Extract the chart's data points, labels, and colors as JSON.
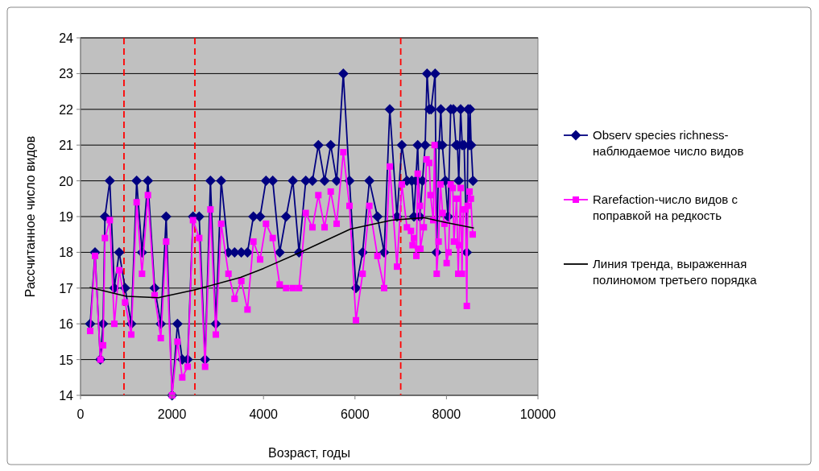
{
  "chart_data": {
    "type": "line",
    "xlabel": "Возраст, годы",
    "ylabel": "Рассчитанное число видов",
    "xlim": [
      0,
      10000
    ],
    "xticks": [
      0,
      2000,
      4000,
      6000,
      8000,
      10000
    ],
    "ylim": [
      14,
      24
    ],
    "yticks": [
      14,
      15,
      16,
      17,
      18,
      19,
      20,
      21,
      22,
      23,
      24
    ],
    "grid": "y",
    "legend": "right",
    "ref_lines": [
      {
        "axis": "x",
        "value": 950,
        "color": "#ff0000",
        "line_style": "dashed"
      },
      {
        "axis": "x",
        "value": 2500,
        "color": "#ff0000",
        "line_style": "dashed"
      },
      {
        "axis": "x",
        "value": 7000,
        "color": "#ff0000",
        "line_style": "dashed"
      }
    ],
    "series": [
      {
        "name": "Observ species richness-наблюдаемое число видов",
        "color": "#000080",
        "marker": "diamond",
        "x": [
          211,
          317,
          434,
          493,
          534,
          640,
          739,
          845,
          974,
          1109,
          1227,
          1344,
          1473,
          1620,
          1755,
          1872,
          2001,
          2119,
          2224,
          2342,
          2459,
          2594,
          2723,
          2840,
          2958,
          3075,
          3234,
          3368,
          3515,
          3650,
          3779,
          3926,
          4055,
          4202,
          4354,
          4495,
          4642,
          4777,
          4924,
          5070,
          5199,
          5335,
          5470,
          5599,
          5745,
          5880,
          6021,
          6167,
          6315,
          6491,
          6637,
          6761,
          6919,
          7025,
          7136,
          7241,
          7289,
          7330,
          7371,
          7418,
          7476,
          7535,
          7576,
          7623,
          7664,
          7752,
          7782,
          7840,
          7876,
          7910,
          7975,
          8034,
          8093,
          8151,
          8210,
          8240,
          8269,
          8310,
          8345,
          8386,
          8445,
          8474,
          8500,
          8517,
          8540,
          8580
        ],
        "values": [
          16,
          18,
          15,
          16,
          19,
          20,
          17,
          18,
          17,
          16,
          20,
          18,
          20,
          17,
          16,
          19,
          14,
          16,
          15,
          15,
          19,
          19,
          15,
          20,
          16,
          20,
          18,
          18,
          18,
          18,
          19,
          19,
          20,
          20,
          18,
          19,
          20,
          18,
          20,
          20,
          21,
          20,
          21,
          20,
          23,
          20,
          17,
          18,
          20,
          19,
          18,
          22,
          19,
          21,
          20,
          20,
          19,
          20,
          21,
          19,
          20,
          21,
          23,
          22,
          22,
          23,
          18,
          21,
          22,
          21,
          20,
          19,
          22,
          22,
          21,
          21,
          20,
          22,
          21,
          21,
          18,
          22,
          21,
          22,
          21,
          20
        ]
      },
      {
        "name": "Rarefaction-число видов с поправкой на редкость",
        "color": "#ff00ff",
        "marker": "square",
        "x": [
          211,
          317,
          434,
          493,
          534,
          640,
          739,
          845,
          974,
          1109,
          1227,
          1344,
          1473,
          1620,
          1755,
          1872,
          2001,
          2119,
          2224,
          2342,
          2459,
          2594,
          2723,
          2840,
          2958,
          3075,
          3234,
          3368,
          3515,
          3650,
          3779,
          3926,
          4055,
          4202,
          4354,
          4495,
          4642,
          4777,
          4924,
          5070,
          5199,
          5335,
          5470,
          5599,
          5745,
          5880,
          6021,
          6167,
          6315,
          6491,
          6637,
          6761,
          6919,
          7025,
          7136,
          7224,
          7259,
          7289,
          7342,
          7371,
          7418,
          7430,
          7505,
          7564,
          7623,
          7652,
          7711,
          7740,
          7787,
          7828,
          7869,
          7916,
          7957,
          8004,
          8045,
          8093,
          8139,
          8163,
          8222,
          8257,
          8275,
          8310,
          8339,
          8369,
          8416,
          8445,
          8463,
          8504,
          8533,
          8574
        ],
        "values": [
          15.8,
          17.9,
          15.0,
          15.4,
          18.4,
          18.9,
          16.0,
          17.5,
          16.6,
          15.7,
          19.4,
          17.4,
          19.6,
          16.8,
          15.6,
          18.3,
          14.0,
          15.5,
          14.5,
          14.8,
          18.9,
          18.4,
          14.8,
          19.2,
          15.7,
          18.8,
          17.4,
          16.7,
          17.2,
          16.4,
          18.3,
          17.8,
          18.8,
          18.4,
          17.1,
          17.0,
          17.0,
          17.0,
          19.1,
          18.7,
          19.6,
          18.7,
          19.7,
          18.8,
          20.8,
          19.3,
          16.1,
          17.4,
          19.3,
          17.9,
          17.0,
          20.4,
          17.6,
          19.9,
          18.7,
          18.6,
          18.2,
          18.4,
          17.9,
          20.2,
          19.3,
          18.1,
          18.7,
          20.6,
          20.5,
          19.6,
          18.9,
          21.0,
          17.4,
          18.3,
          19.9,
          19.1,
          18.8,
          17.7,
          18.0,
          19.9,
          19.8,
          18.3,
          19.5,
          17.4,
          18.2,
          19.8,
          17.4,
          19.2,
          19.2,
          16.5,
          19.3,
          19.7,
          19.5,
          18.5
        ]
      },
      {
        "name": "Линия тренда, выраженная полиномом третьего порядка",
        "color": "#000000",
        "marker": "none",
        "x": [
          200,
          1000,
          1700,
          2500,
          3500,
          4000,
          4800,
          5900,
          6800,
          7500,
          8000,
          8600
        ],
        "values": [
          17.02,
          16.77,
          16.73,
          16.95,
          17.3,
          17.55,
          18.0,
          18.65,
          18.9,
          18.97,
          18.83,
          18.68
        ]
      }
    ]
  }
}
